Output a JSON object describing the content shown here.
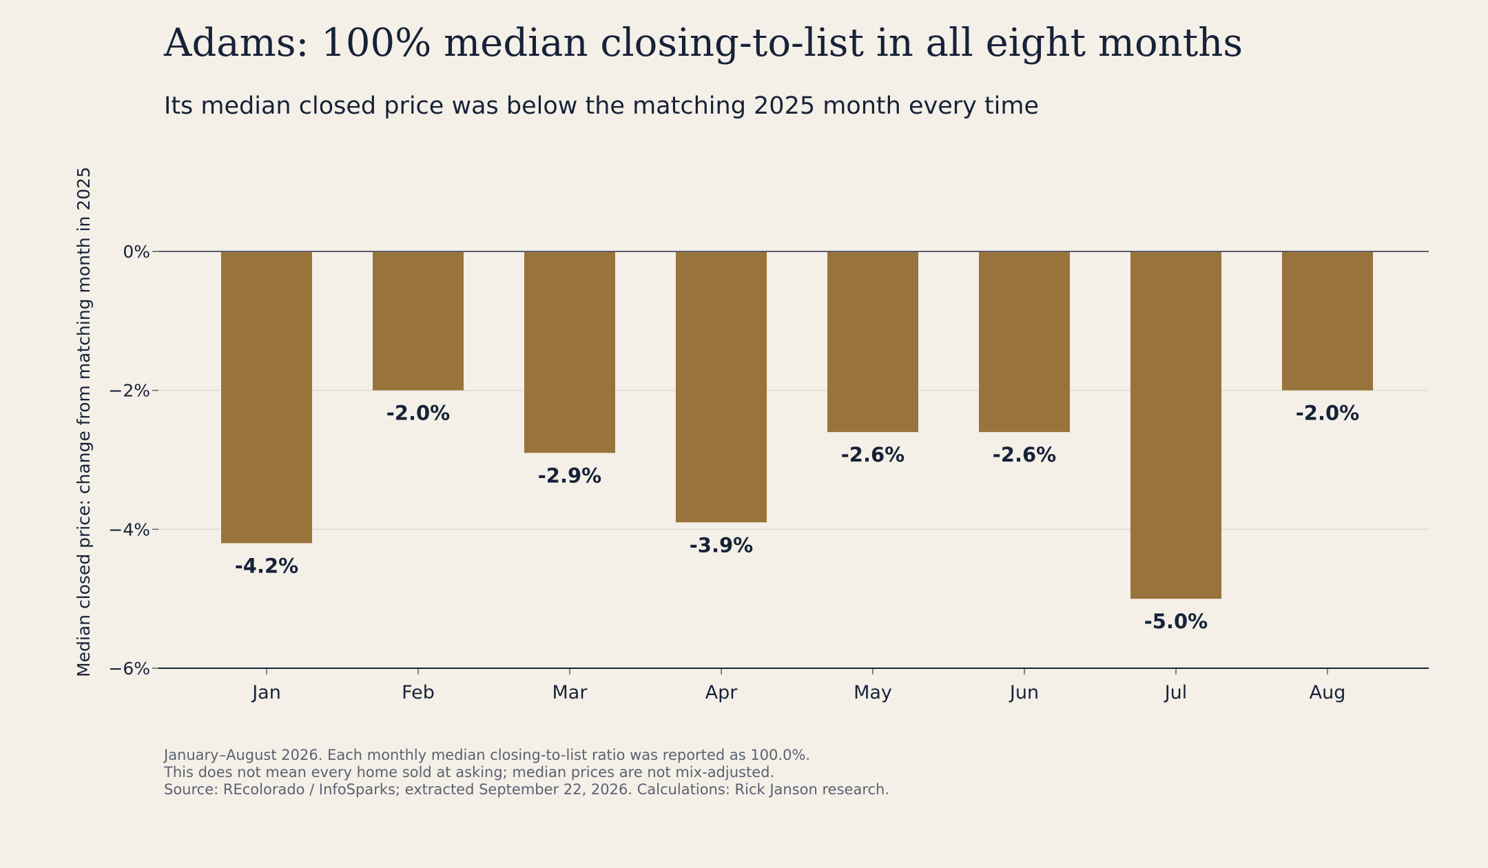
{
  "header": {
    "title": "Adams: 100% median closing-to-list in all eight months",
    "subtitle": "Its median closed price was below the matching 2025 month every time"
  },
  "notes": [
    "January–August 2026. Each monthly median closing-to-list ratio was reported as 100.0%.",
    "This does not mean every home sold at asking; median prices are not mix-adjusted.",
    "Source: REcolorado / InfoSparks; extracted September 22, 2026. Calculations: Rick Janson research."
  ],
  "chart_data": {
    "type": "bar",
    "categories": [
      "Jan",
      "Feb",
      "Mar",
      "Apr",
      "May",
      "Jun",
      "Jul",
      "Aug"
    ],
    "values": [
      -4.2,
      -2.0,
      -2.9,
      -3.9,
      -2.6,
      -2.6,
      -5.0,
      -2.0
    ],
    "data_labels": [
      "-4.2%",
      "-2.0%",
      "-2.9%",
      "-3.9%",
      "-2.6%",
      "-2.6%",
      "-5.0%",
      "-2.0%"
    ],
    "ylabel": "Median closed price: change from matching month in 2025",
    "ylim": [
      -6,
      0
    ],
    "yticks": [
      0,
      -2,
      -4,
      -6
    ],
    "ytick_labels": [
      "0%",
      "−2%",
      "−4%",
      "−6%"
    ],
    "grid": true,
    "colors": {
      "bar": "#98733b",
      "text": "#172238",
      "grid": "#e2dccf",
      "axis": "#5a5f6b",
      "background": "#f4f0e8"
    }
  }
}
